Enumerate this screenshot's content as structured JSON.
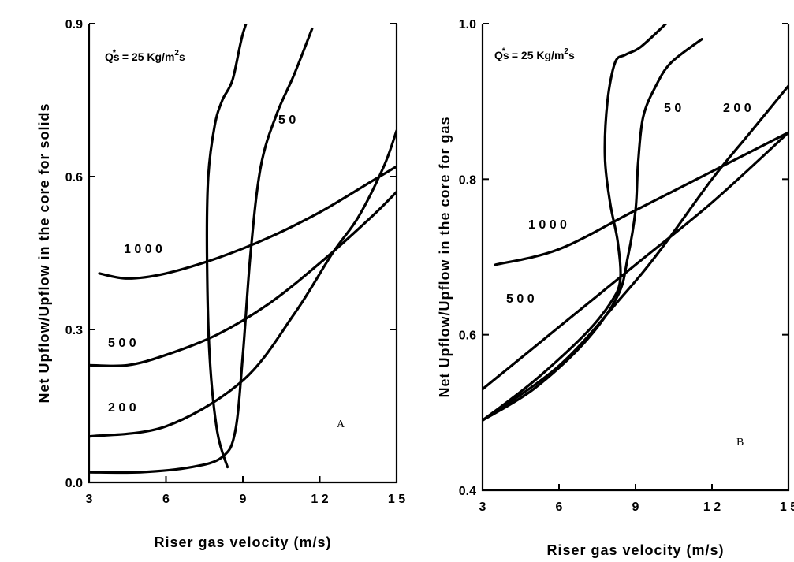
{
  "chart_data": [
    {
      "type": "line",
      "panel_label": "A",
      "xlabel": "Riser gas velocity (m/s)",
      "ylabel": "Net Upflow/Upflow in the core for solids",
      "xlim": [
        3,
        15
      ],
      "ylim": [
        0.0,
        0.9
      ],
      "xticks": [
        3,
        6,
        9,
        12,
        15
      ],
      "xtick_labels": [
        "3",
        "6",
        "9",
        "1 2",
        "1 5"
      ],
      "yticks": [
        0.0,
        0.3,
        0.6,
        0.9
      ],
      "ytick_labels": [
        "0.0",
        "0.3",
        "0.6",
        "0.9"
      ],
      "grid": false,
      "legend_text": {
        "prefix": "Qs",
        "star": "*",
        "mid": " = 25 Kg/m",
        "sup": "2",
        "suffix": "s"
      },
      "series": [
        {
          "name": "25",
          "label": "",
          "x": [
            8.4,
            8.0,
            7.7,
            7.6,
            7.65,
            7.9,
            8.2,
            8.6,
            9.0,
            9.5
          ],
          "y": [
            0.03,
            0.1,
            0.25,
            0.45,
            0.6,
            0.7,
            0.75,
            0.79,
            0.88,
            0.95
          ]
        },
        {
          "name": "50",
          "label": "5 0",
          "x": [
            3.0,
            5.0,
            7.0,
            8.2,
            8.7,
            9.0,
            9.3,
            9.7,
            10.3,
            11.0,
            11.7
          ],
          "y": [
            0.02,
            0.02,
            0.03,
            0.05,
            0.1,
            0.25,
            0.45,
            0.62,
            0.72,
            0.8,
            0.89
          ]
        },
        {
          "name": "200",
          "label": "2 0 0",
          "x": [
            3.0,
            6.0,
            9.0,
            11.0,
            12.5,
            13.5,
            14.5,
            15.0
          ],
          "y": [
            0.09,
            0.11,
            0.2,
            0.33,
            0.45,
            0.52,
            0.62,
            0.69
          ]
        },
        {
          "name": "500",
          "label": "5 0 0",
          "x": [
            3.0,
            4.5,
            6.0,
            8.0,
            10.0,
            12.0,
            14.0,
            15.0
          ],
          "y": [
            0.23,
            0.23,
            0.25,
            0.29,
            0.35,
            0.43,
            0.52,
            0.57
          ]
        },
        {
          "name": "1000",
          "label": "1 0 0 0",
          "x": [
            3.4,
            4.5,
            6.0,
            8.0,
            10.0,
            12.0,
            14.0,
            15.0
          ],
          "y": [
            0.41,
            0.4,
            0.41,
            0.44,
            0.48,
            0.53,
            0.59,
            0.62
          ]
        }
      ]
    },
    {
      "type": "line",
      "panel_label": "B",
      "xlabel": "Riser gas velocity (m/s)",
      "ylabel": "Net Upflow/Upflow in the core for gas",
      "xlim": [
        3,
        15
      ],
      "ylim": [
        0.4,
        1.0
      ],
      "xticks": [
        3,
        6,
        9,
        12,
        15
      ],
      "xtick_labels": [
        "3",
        "6",
        "9",
        "1 2",
        "1 5"
      ],
      "yticks": [
        0.4,
        0.6,
        0.8,
        1.0
      ],
      "ytick_labels": [
        "0.4",
        "0.6",
        "0.8",
        "1.0"
      ],
      "grid": false,
      "legend_text": {
        "prefix": "Qs",
        "star": "*",
        "mid": " = 25 Kg/m",
        "sup": "2",
        "suffix": "s"
      },
      "series": [
        {
          "name": "25",
          "label": "",
          "x": [
            3.0,
            5.0,
            7.0,
            8.0,
            8.4,
            8.3,
            8.0,
            7.8,
            7.9,
            8.2,
            8.6,
            9.2,
            10.2
          ],
          "y": [
            0.49,
            0.54,
            0.6,
            0.64,
            0.67,
            0.72,
            0.77,
            0.83,
            0.9,
            0.95,
            0.96,
            0.97,
            1.0
          ]
        },
        {
          "name": "50",
          "label": "5 0",
          "x": [
            3.0,
            5.0,
            7.0,
            8.3,
            8.7,
            9.0,
            9.1,
            9.3,
            9.8,
            10.4,
            11.6
          ],
          "y": [
            0.49,
            0.53,
            0.59,
            0.65,
            0.7,
            0.76,
            0.82,
            0.88,
            0.92,
            0.95,
            0.98
          ]
        },
        {
          "name": "200",
          "label": "2 0 0",
          "x": [
            3.0,
            6.0,
            8.5,
            10.0,
            12.0,
            13.5,
            15.0
          ],
          "y": [
            0.49,
            0.56,
            0.65,
            0.71,
            0.8,
            0.86,
            0.92
          ]
        },
        {
          "name": "500",
          "label": "5 0 0",
          "x": [
            3.0,
            6.0,
            9.0,
            12.0,
            15.0
          ],
          "y": [
            0.53,
            0.61,
            0.69,
            0.77,
            0.86
          ]
        },
        {
          "name": "1000",
          "label": "1 0 0 0",
          "x": [
            3.5,
            6.0,
            9.0,
            12.0,
            15.0
          ],
          "y": [
            0.69,
            0.71,
            0.76,
            0.81,
            0.86
          ]
        }
      ]
    }
  ]
}
